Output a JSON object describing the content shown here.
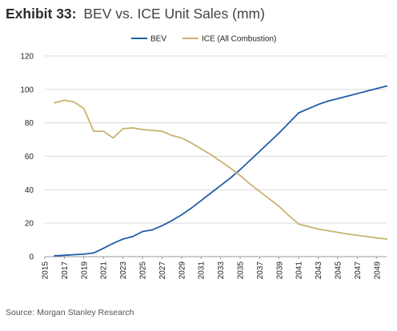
{
  "header": {
    "exhibit_label": "Exhibit 33:",
    "title": "BEV vs. ICE Unit Sales (mm)"
  },
  "source": "Source: Morgan Stanley Research",
  "chart_data": {
    "type": "line",
    "title": "BEV vs. ICE Unit Sales (mm)",
    "xlabel": "",
    "ylabel": "",
    "xlim": [
      2015,
      2050
    ],
    "ylim": [
      0,
      120
    ],
    "y_ticks": [
      0,
      20,
      40,
      60,
      80,
      100,
      120
    ],
    "x_ticks": [
      2015,
      2017,
      2019,
      2021,
      2023,
      2025,
      2027,
      2029,
      2031,
      2033,
      2035,
      2037,
      2039,
      2041,
      2043,
      2045,
      2047,
      2049
    ],
    "grid": "horizontal",
    "legend_position": "top-center",
    "x": [
      2016,
      2017,
      2018,
      2019,
      2020,
      2021,
      2022,
      2023,
      2024,
      2025,
      2026,
      2027,
      2028,
      2029,
      2030,
      2031,
      2032,
      2033,
      2034,
      2035,
      2036,
      2037,
      2038,
      2039,
      2040,
      2041,
      2042,
      2043,
      2044,
      2045,
      2046,
      2047,
      2048,
      2049,
      2050
    ],
    "series": [
      {
        "name": "BEV",
        "color": "#1f5ea8",
        "values": [
          0.5,
          0.8,
          1.2,
          1.5,
          2.2,
          5,
          8,
          10.5,
          12,
          15,
          16,
          18.5,
          21.5,
          25,
          29,
          33.5,
          38,
          42.5,
          47,
          52,
          57.5,
          63,
          68.5,
          74,
          80,
          86,
          88.5,
          91,
          93,
          94.5,
          96,
          97.5,
          99,
          100.5,
          102
        ]
      },
      {
        "name": "ICE (All Combustion)",
        "color": "#c9b36f",
        "values": [
          92,
          93.5,
          92.5,
          88.5,
          75,
          75,
          71,
          76.5,
          77,
          76,
          75.5,
          75,
          72.5,
          71,
          68,
          64.5,
          61,
          57,
          53,
          48.5,
          43.5,
          39,
          34.5,
          30,
          24.5,
          19.5,
          18,
          16.5,
          15.5,
          14.5,
          13.5,
          12.8,
          12,
          11.2,
          10.5
        ]
      }
    ]
  }
}
